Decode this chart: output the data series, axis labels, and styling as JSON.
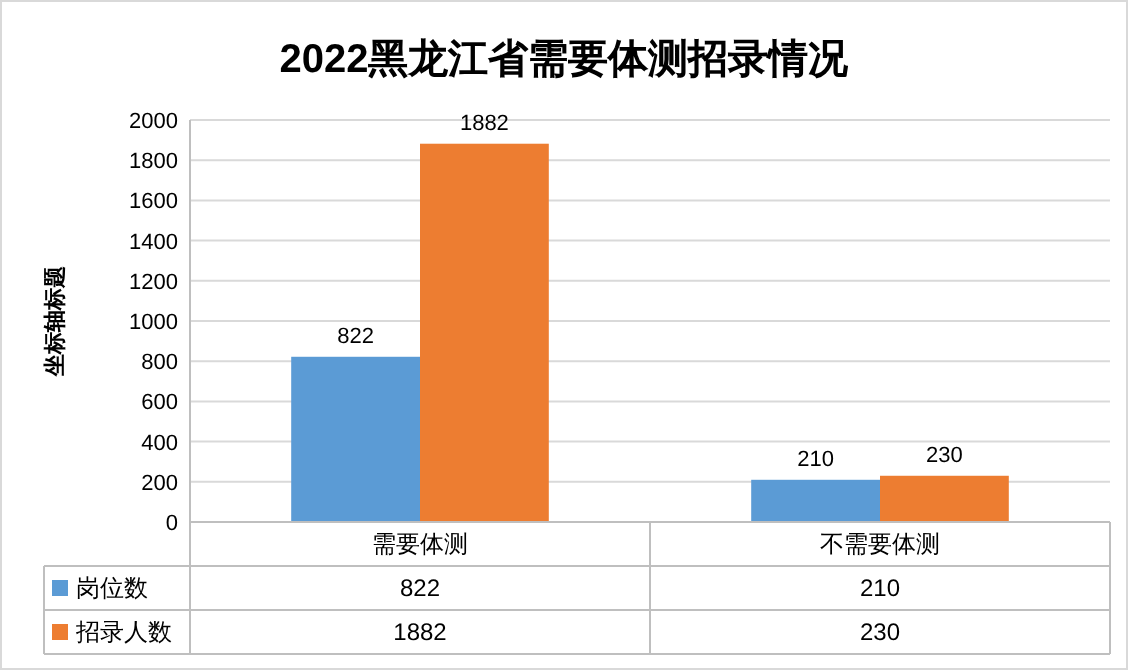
{
  "chart_data": {
    "type": "bar",
    "title": "2022黑龙江省需要体测招录情况",
    "ylabel": "坐标轴标题",
    "categories": [
      "需要体测",
      "不需要体测"
    ],
    "series": [
      {
        "name": "岗位数",
        "color": "#5b9bd5",
        "values": [
          822,
          210
        ],
        "value_labels": [
          "822",
          "210"
        ]
      },
      {
        "name": "招录人数",
        "color": "#ed7d31",
        "values": [
          1882,
          230
        ],
        "value_labels": [
          "1882",
          "230"
        ]
      }
    ],
    "ylim": [
      0,
      2000
    ],
    "yticks": [
      0,
      200,
      400,
      600,
      800,
      1000,
      1200,
      1400,
      1600,
      1800,
      2000
    ],
    "annotations": [
      "822",
      "210",
      "1882",
      "230"
    ],
    "grid": "y",
    "data_labels": true,
    "legend": "bottom"
  }
}
